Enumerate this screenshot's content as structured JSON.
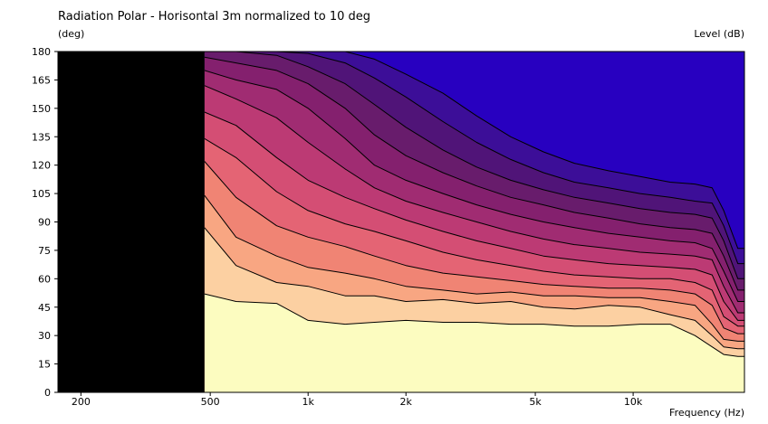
{
  "chart_data": {
    "type": "heatmap",
    "title": "Radiation Polar - Horisontal 3m normalized to 10 deg",
    "ylabel": "(deg)",
    "xlabel": "Frequency  (Hz)",
    "legend_label": "Level  (dB)",
    "x_scale": "log",
    "xlim": [
      170,
      22000
    ],
    "ylim": [
      0,
      180
    ],
    "x_ticks": [
      {
        "value": 200,
        "label": "200"
      },
      {
        "value": 500,
        "label": "500"
      },
      {
        "value": 1000,
        "label": "1k"
      },
      {
        "value": 2000,
        "label": "2k"
      },
      {
        "value": 5000,
        "label": "5k"
      },
      {
        "value": 10000,
        "label": "10k"
      }
    ],
    "y_ticks": [
      0,
      15,
      30,
      45,
      60,
      75,
      90,
      105,
      120,
      135,
      150,
      165,
      180
    ],
    "no_data_below_hz": 480,
    "no_data_color": "#000000",
    "band_colors": [
      "#fcfcc0",
      "#fcd0a2",
      "#f8a682",
      "#f08474",
      "#e46474",
      "#d44e74",
      "#bc3a74",
      "#a02c72",
      "#84206e",
      "#681c6c",
      "#501478",
      "#3c0e98",
      "#2800c0"
    ],
    "contours": {
      "x": [
        480,
        600,
        800,
        1000,
        1300,
        1600,
        2000,
        2600,
        3300,
        4200,
        5300,
        6600,
        8400,
        10500,
        13000,
        15500,
        17500,
        19000,
        21000,
        22000
      ],
      "angles": [
        [
          52,
          48,
          47,
          38,
          36,
          37,
          38,
          37,
          37,
          36,
          36,
          35,
          35,
          36,
          36,
          30,
          24,
          20,
          19,
          19
        ],
        [
          87,
          67,
          58,
          56,
          51,
          51,
          48,
          49,
          47,
          48,
          45,
          44,
          46,
          45,
          41,
          38,
          30,
          24,
          23,
          23
        ],
        [
          104,
          82,
          72,
          66,
          63,
          60,
          56,
          54,
          52,
          53,
          51,
          51,
          50,
          50,
          48,
          46,
          36,
          28,
          27,
          27
        ],
        [
          122,
          103,
          88,
          82,
          77,
          72,
          67,
          63,
          61,
          59,
          57,
          56,
          55,
          55,
          54,
          52,
          46,
          34,
          31,
          31
        ],
        [
          134,
          124,
          106,
          96,
          89,
          85,
          80,
          74,
          70,
          67,
          64,
          62,
          61,
          60,
          60,
          58,
          54,
          40,
          35,
          35
        ],
        [
          148,
          141,
          124,
          112,
          103,
          97,
          91,
          85,
          80,
          76,
          72,
          70,
          68,
          67,
          66,
          65,
          62,
          48,
          38,
          38
        ],
        [
          162,
          155,
          145,
          132,
          118,
          108,
          101,
          95,
          90,
          85,
          81,
          78,
          76,
          74,
          73,
          72,
          70,
          56,
          42,
          42
        ],
        [
          170,
          165,
          160,
          150,
          134,
          120,
          112,
          105,
          99,
          94,
          90,
          87,
          84,
          82,
          80,
          79,
          76,
          64,
          48,
          48
        ],
        [
          177,
          174,
          170,
          163,
          150,
          136,
          125,
          116,
          109,
          103,
          99,
          95,
          92,
          89,
          87,
          86,
          84,
          72,
          54,
          54
        ],
        [
          180,
          180,
          178,
          172,
          163,
          152,
          140,
          128,
          119,
          112,
          107,
          103,
          100,
          97,
          95,
          94,
          92,
          80,
          60,
          60
        ],
        [
          180,
          180,
          180,
          179,
          174,
          166,
          156,
          143,
          132,
          123,
          116,
          111,
          108,
          105,
          103,
          101,
          100,
          88,
          68,
          68
        ],
        [
          180,
          180,
          180,
          180,
          180,
          176,
          168,
          158,
          146,
          135,
          127,
          121,
          117,
          114,
          111,
          110,
          108,
          96,
          76,
          76
        ]
      ]
    }
  }
}
